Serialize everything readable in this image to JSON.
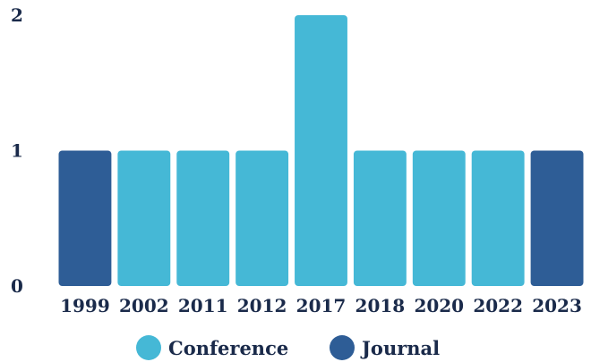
{
  "chart_data": {
    "type": "bar",
    "categories": [
      "1999",
      "2002",
      "2011",
      "2012",
      "2017",
      "2018",
      "2020",
      "2022",
      "2023"
    ],
    "values": [
      1,
      1,
      1,
      1,
      2,
      1,
      1,
      1,
      1
    ],
    "groups": [
      "Journal",
      "Conference",
      "Conference",
      "Conference",
      "Conference",
      "Conference",
      "Conference",
      "Conference",
      "Journal"
    ],
    "yticks": [
      "0",
      "1",
      "2"
    ],
    "ylim": [
      0,
      2
    ],
    "grid": false,
    "legend_position": "bottom",
    "legend": [
      {
        "name": "Conference",
        "color": "#45b8d6"
      },
      {
        "name": "Journal",
        "color": "#2e5d96"
      }
    ]
  }
}
